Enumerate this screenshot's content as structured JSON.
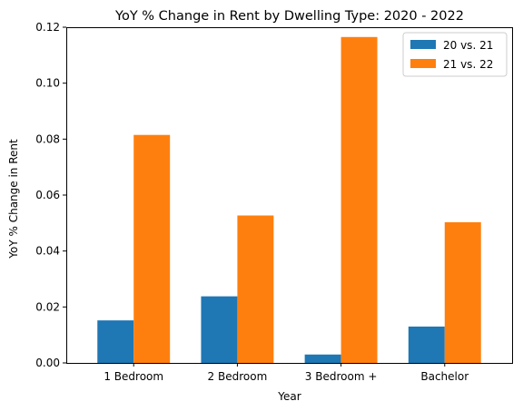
{
  "chart_data": {
    "type": "bar",
    "title": "YoY % Change in Rent by Dwelling Type: 2020 - 2022",
    "xlabel": "Year",
    "ylabel": "YoY % Change in Rent",
    "categories": [
      "1 Bedroom",
      "2 Bedroom",
      "3 Bedroom +",
      "Bachelor"
    ],
    "series": [
      {
        "name": "20 vs. 21",
        "color": "#1f77b4",
        "values": [
          0.0152,
          0.0238,
          0.003,
          0.013
        ]
      },
      {
        "name": "21 vs. 22",
        "color": "#ff7f0e",
        "values": [
          0.0815,
          0.0527,
          0.1165,
          0.0503
        ]
      }
    ],
    "ylim": [
      0,
      0.12
    ],
    "yticks": [
      "0.00",
      "0.02",
      "0.04",
      "0.06",
      "0.08",
      "0.10",
      "0.12"
    ],
    "ytick_values": [
      0,
      0.02,
      0.04,
      0.06,
      0.08,
      0.1,
      0.12
    ],
    "legend_position": "top-right",
    "grid": false
  }
}
